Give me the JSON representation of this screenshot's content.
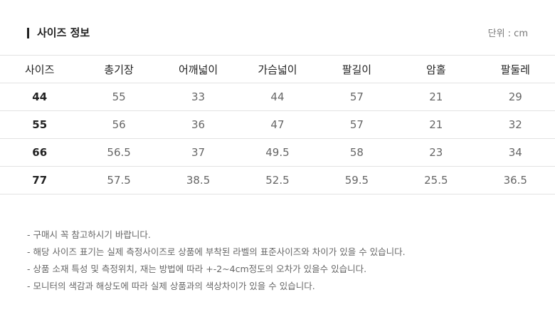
{
  "header": {
    "title": "사이즈 정보",
    "unit": "단위 : cm"
  },
  "table": {
    "columns": [
      "사이즈",
      "총기장",
      "어깨넓이",
      "가슴넓이",
      "팔길이",
      "암홀",
      "팔둘레"
    ],
    "rows": [
      [
        "44",
        "55",
        "33",
        "44",
        "57",
        "21",
        "29"
      ],
      [
        "55",
        "56",
        "36",
        "47",
        "57",
        "21",
        "32"
      ],
      [
        "66",
        "56.5",
        "37",
        "49.5",
        "58",
        "23",
        "34"
      ],
      [
        "77",
        "57.5",
        "38.5",
        "52.5",
        "59.5",
        "25.5",
        "36.5"
      ]
    ]
  },
  "notes": [
    "- 구매시 꼭 참고하시기 바랍니다.",
    "- 해당 사이즈 표기는 실제 측정사이즈로 상품에 부착된 라벨의 표준사이즈와 차이가 있을 수 있습니다.",
    "- 상품 소재 특성 및 측정위치, 재는 방법에 따라 +-2~4cm정도의 오차가 있을수 있습니다.",
    "- 모니터의 색감과 해상도에 따라 실제 상품과의 색상차이가 있을 수 있습니다."
  ]
}
